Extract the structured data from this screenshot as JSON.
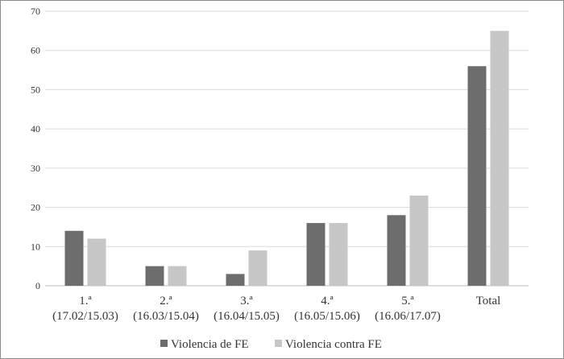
{
  "chart_data": {
    "type": "bar",
    "title": "",
    "xlabel": "",
    "ylabel": "",
    "ylim": [
      0,
      70
    ],
    "yticks": [
      0,
      10,
      20,
      30,
      40,
      50,
      60,
      70
    ],
    "grid": true,
    "legend_position": "bottom",
    "categories": [
      [
        "1.ª",
        "(17.02/15.03)"
      ],
      [
        "2.ª",
        "(16.03/15.04)"
      ],
      [
        "3.ª",
        "(16.04/15.05)"
      ],
      [
        "4.ª",
        "(16.05/15.06)"
      ],
      [
        "5.ª",
        "(16.06/17.07)"
      ],
      [
        "Total"
      ]
    ],
    "series": [
      {
        "name": "Violencia de FE",
        "color": "#6d6d6d",
        "values": [
          14,
          5,
          3,
          16,
          18,
          56
        ]
      },
      {
        "name": "Violencia contra FE",
        "color": "#c6c6c6",
        "values": [
          12,
          5,
          9,
          16,
          23,
          65
        ]
      }
    ]
  }
}
